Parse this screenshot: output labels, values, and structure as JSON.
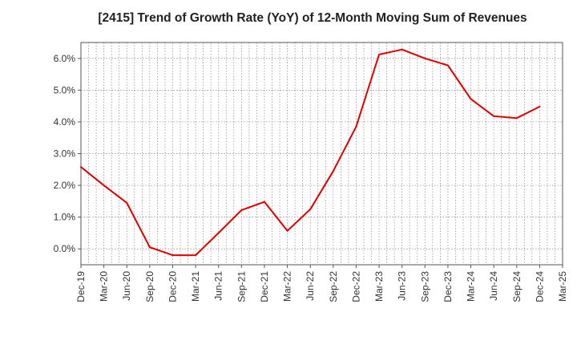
{
  "chart_data": {
    "type": "line",
    "title": "[2415]  Trend of Growth Rate (YoY) of 12-Month Moving Sum of Revenues",
    "xlabel": "",
    "ylabel": "",
    "ylim": [
      -0.5,
      6.5
    ],
    "yticks": [
      0.0,
      1.0,
      2.0,
      3.0,
      4.0,
      5.0,
      6.0
    ],
    "ytick_labels": [
      "0.0%",
      "1.0%",
      "2.0%",
      "3.0%",
      "4.0%",
      "5.0%",
      "6.0%"
    ],
    "categories": [
      "Dec-19",
      "Mar-20",
      "Jun-20",
      "Sep-20",
      "Dec-20",
      "Mar-21",
      "Jun-21",
      "Sep-21",
      "Dec-21",
      "Mar-22",
      "Jun-22",
      "Sep-22",
      "Dec-22",
      "Mar-23",
      "Jun-23",
      "Sep-23",
      "Dec-23",
      "Mar-24",
      "Jun-24",
      "Sep-24",
      "Dec-24",
      "Mar-25"
    ],
    "x_month_index": [
      0,
      1,
      2,
      3,
      4,
      5,
      6,
      7,
      8,
      9,
      10,
      11,
      12,
      13,
      14,
      15,
      16,
      17,
      18,
      19,
      20,
      21,
      22,
      23,
      24,
      25,
      26,
      27,
      28,
      29,
      30,
      31,
      32,
      33,
      34,
      35,
      36,
      37,
      38,
      39,
      40,
      41,
      42,
      43,
      44,
      45,
      46,
      47,
      48,
      49,
      50,
      51,
      52,
      53,
      54,
      55,
      56,
      57,
      58,
      59,
      60,
      61,
      62,
      63
    ],
    "series": [
      {
        "name": "",
        "color": "#e00000",
        "points": [
          {
            "x": "Dec-19",
            "y": 2.58
          },
          {
            "x": "Mar-20",
            "y": 2.0
          },
          {
            "x": "Jun-20",
            "y": 1.45
          },
          {
            "x": "Sep-20",
            "y": 0.05
          },
          {
            "x": "Dec-20",
            "y": -0.2
          },
          {
            "x": "Mar-21",
            "y": -0.2
          },
          {
            "x": "Jun-21",
            "y": 0.5
          },
          {
            "x": "Sep-21",
            "y": 1.22
          },
          {
            "x": "Dec-21",
            "y": 1.48
          },
          {
            "x": "Mar-22",
            "y": 0.57
          },
          {
            "x": "Jun-22",
            "y": 1.25
          },
          {
            "x": "Sep-22",
            "y": 2.45
          },
          {
            "x": "Dec-22",
            "y": 3.85
          },
          {
            "x": "Mar-23",
            "y": 6.12
          },
          {
            "x": "Jun-23",
            "y": 6.28
          },
          {
            "x": "Sep-23",
            "y": 6.0
          },
          {
            "x": "Dec-23",
            "y": 5.78
          },
          {
            "x": "Mar-24",
            "y": 4.72
          },
          {
            "x": "Jun-24",
            "y": 4.18
          },
          {
            "x": "Sep-24",
            "y": 4.12
          },
          {
            "x": "Dec-24",
            "y": 4.48
          }
        ]
      }
    ],
    "grid": true,
    "legend": "none"
  }
}
